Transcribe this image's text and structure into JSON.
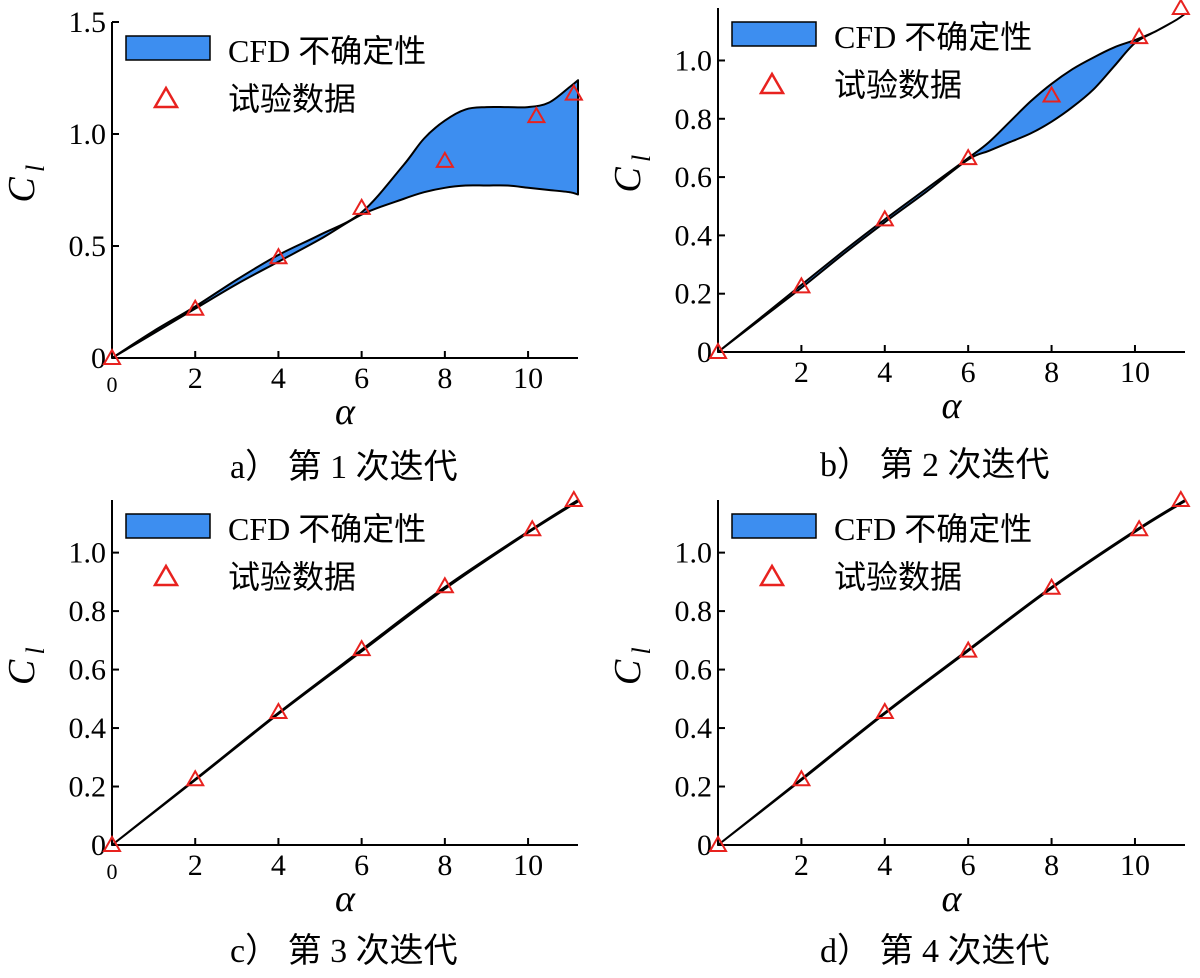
{
  "chart_data": [
    {
      "type": "line",
      "caption": "a） 第 1 次迭代",
      "xlabel": "α",
      "ylabel": "C",
      "ylabel_sub": "l",
      "xlim": [
        0,
        11.2
      ],
      "ylim": [
        0,
        1.5
      ],
      "xticks": [
        0,
        2,
        4,
        6,
        8,
        10
      ],
      "yticks": [
        0,
        0.5,
        1.0,
        1.5
      ],
      "ytick_labels": [
        "0",
        "0.5",
        "1.0",
        "1.5"
      ],
      "grid": false,
      "legend_position": "top-left",
      "legend": [
        {
          "label": "CFD 不确定性",
          "kind": "band"
        },
        {
          "label": "试验数据",
          "kind": "marker"
        }
      ],
      "band": {
        "x": [
          0,
          1,
          2,
          3,
          4,
          5,
          6,
          7,
          7.5,
          8,
          8.5,
          9,
          9.5,
          10,
          10.5,
          11,
          11.2
        ],
        "upper": [
          0,
          0.12,
          0.23,
          0.35,
          0.46,
          0.55,
          0.65,
          0.86,
          0.98,
          1.06,
          1.11,
          1.12,
          1.12,
          1.12,
          1.14,
          1.21,
          1.24
        ],
        "lower": [
          0,
          0.11,
          0.22,
          0.33,
          0.43,
          0.53,
          0.64,
          0.71,
          0.74,
          0.76,
          0.77,
          0.77,
          0.77,
          0.76,
          0.75,
          0.74,
          0.73
        ]
      },
      "experiment": {
        "x": [
          0,
          2,
          4,
          6,
          8,
          10.2,
          11.1
        ],
        "y": [
          0,
          0.22,
          0.45,
          0.67,
          0.88,
          1.08,
          1.18
        ]
      }
    },
    {
      "type": "line",
      "caption": "b） 第 2 次迭代",
      "xlabel": "α",
      "ylabel": "C",
      "ylabel_sub": "l",
      "xlim": [
        0,
        11.2
      ],
      "ylim": [
        0,
        1.18
      ],
      "xticks": [
        2,
        4,
        6,
        8,
        10
      ],
      "yticks": [
        0,
        0.2,
        0.4,
        0.6,
        0.8,
        1.0
      ],
      "ytick_labels": [
        "0",
        "0.2",
        "0.4",
        "0.6",
        "0.8",
        "1.0"
      ],
      "grid": false,
      "legend_position": "top-left",
      "legend": [
        {
          "label": "CFD 不确定性",
          "kind": "band"
        },
        {
          "label": "试验数据",
          "kind": "marker"
        }
      ],
      "band": {
        "x": [
          0,
          1,
          2,
          3,
          4,
          5,
          6,
          6.5,
          7,
          7.5,
          8,
          8.5,
          9,
          9.5,
          10,
          10.5,
          11,
          11.2
        ],
        "upper": [
          0,
          0.115,
          0.23,
          0.345,
          0.455,
          0.56,
          0.665,
          0.72,
          0.79,
          0.86,
          0.92,
          0.97,
          1.01,
          1.045,
          1.07,
          1.1,
          1.14,
          1.16
        ],
        "lower": [
          0,
          0.11,
          0.22,
          0.335,
          0.445,
          0.55,
          0.66,
          0.69,
          0.72,
          0.75,
          0.79,
          0.84,
          0.9,
          0.98,
          1.06,
          1.1,
          1.14,
          1.16
        ]
      },
      "experiment": {
        "x": [
          0,
          2,
          4,
          6,
          8,
          10.1,
          11.1
        ],
        "y": [
          0,
          0.225,
          0.455,
          0.665,
          0.88,
          1.08,
          1.18
        ]
      }
    },
    {
      "type": "line",
      "caption": "c） 第 3 次迭代",
      "xlabel": "α",
      "ylabel": "C",
      "ylabel_sub": "l",
      "xlim": [
        0,
        11.2
      ],
      "ylim": [
        0,
        1.18
      ],
      "xticks": [
        0,
        2,
        4,
        6,
        8,
        10
      ],
      "yticks": [
        0,
        0.2,
        0.4,
        0.6,
        0.8,
        1.0
      ],
      "ytick_labels": [
        "0",
        "0.2",
        "0.4",
        "0.6",
        "0.8",
        "1.0"
      ],
      "grid": false,
      "legend_position": "top-left",
      "legend": [
        {
          "label": "CFD 不确定性",
          "kind": "band"
        },
        {
          "label": "试验数据",
          "kind": "marker"
        }
      ],
      "band": {
        "x": [
          0,
          2,
          4,
          6,
          8,
          10,
          11.2
        ],
        "upper": [
          0,
          0.225,
          0.452,
          0.668,
          0.882,
          1.072,
          1.18
        ],
        "lower": [
          0,
          0.222,
          0.448,
          0.662,
          0.876,
          1.068,
          1.175
        ]
      },
      "experiment": {
        "x": [
          0,
          2,
          4,
          6,
          8,
          10.1,
          11.1
        ],
        "y": [
          0,
          0.225,
          0.455,
          0.67,
          0.885,
          1.08,
          1.18
        ]
      }
    },
    {
      "type": "line",
      "caption": "d） 第 4 次迭代",
      "xlabel": "α",
      "ylabel": "C",
      "ylabel_sub": "l",
      "xlim": [
        0,
        11.2
      ],
      "ylim": [
        0,
        1.18
      ],
      "xticks": [
        2,
        4,
        6,
        8,
        10
      ],
      "yticks": [
        0,
        0.2,
        0.4,
        0.6,
        0.8,
        1.0
      ],
      "ytick_labels": [
        "0",
        "0.2",
        "0.4",
        "0.6",
        "0.8",
        "1.0"
      ],
      "grid": false,
      "legend_position": "top-left",
      "legend": [
        {
          "label": "CFD 不确定性",
          "kind": "band"
        },
        {
          "label": "试验数据",
          "kind": "marker"
        }
      ],
      "band": {
        "x": [
          0,
          2,
          4,
          6,
          8,
          10,
          11.2
        ],
        "upper": [
          0,
          0.226,
          0.453,
          0.668,
          0.882,
          1.075,
          1.18
        ],
        "lower": [
          0,
          0.222,
          0.449,
          0.664,
          0.878,
          1.071,
          1.176
        ]
      },
      "experiment": {
        "x": [
          0,
          2,
          4,
          6,
          8,
          10.1,
          11.1
        ],
        "y": [
          0,
          0.225,
          0.455,
          0.665,
          0.88,
          1.08,
          1.18
        ]
      }
    }
  ],
  "colors": {
    "band_fill": "#3d8ef0",
    "band_edge": "#000000",
    "marker": "#e8221f",
    "axis": "#000000"
  }
}
